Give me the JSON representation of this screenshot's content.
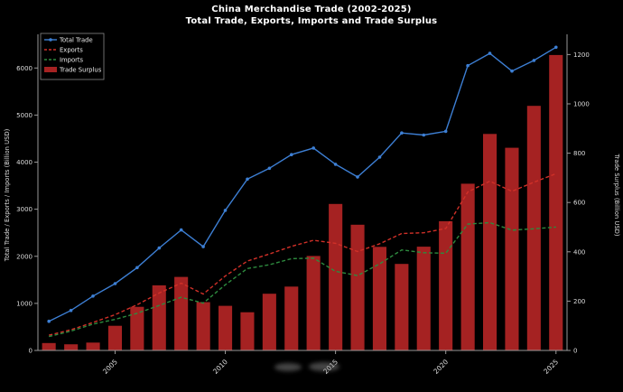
{
  "figure": {
    "title": "China Merchandise Trade (2002-2025)",
    "subtitle": "Total Trade, Exports, Imports and Trade Surplus"
  },
  "colors": {
    "background": "#000000",
    "total_trade": "#3d7fd4",
    "exports": "#d03028",
    "imports": "#2d8a3e",
    "surplus_bar": "#a52222",
    "axis": "#999999",
    "tick_text": "#dddddd",
    "legend_border": "#888888"
  },
  "chart_data": {
    "type": "line",
    "title": "China Merchandise Trade (2002-2025)",
    "subtitle": "Total Trade, Exports, Imports and Trade Surplus",
    "x": [
      2002,
      2003,
      2004,
      2005,
      2006,
      2007,
      2008,
      2009,
      2010,
      2011,
      2012,
      2013,
      2014,
      2015,
      2016,
      2017,
      2018,
      2019,
      2020,
      2021,
      2022,
      2023,
      2024,
      2025
    ],
    "xticks": [
      2005,
      2010,
      2015,
      2020,
      2025
    ],
    "ylabel_left": "Total Trade / Exports / Imports (Billion USD)",
    "ylabel_right": "Trade Surplus (Billion USD)",
    "ylim_left": [
      0,
      6600
    ],
    "ylim_right": [
      0,
      1260
    ],
    "yticks_left": [
      0,
      1000,
      2000,
      3000,
      4000,
      5000,
      6000
    ],
    "yticks_right": [
      0,
      200,
      400,
      600,
      800,
      1000,
      1200
    ],
    "grid": false,
    "legend_position": "upper-left",
    "series": [
      {
        "name": "Total Trade",
        "axis": "left",
        "style": "line-marker",
        "color": "#3d7fd4",
        "values": [
          620,
          850,
          1155,
          1420,
          1760,
          2175,
          2560,
          2205,
          2975,
          3640,
          3870,
          4160,
          4300,
          3955,
          3685,
          4105,
          4620,
          4575,
          4655,
          6050,
          6310,
          5935,
          6160,
          6440
        ]
      },
      {
        "name": "Exports",
        "axis": "left",
        "style": "dashed",
        "color": "#d03028",
        "values": [
          325,
          440,
          595,
          760,
          970,
          1220,
          1430,
          1200,
          1580,
          1900,
          2050,
          2210,
          2340,
          2275,
          2100,
          2265,
          2485,
          2500,
          2590,
          3365,
          3595,
          3380,
          3575,
          3755
        ]
      },
      {
        "name": "Imports",
        "axis": "left",
        "style": "dashed",
        "color": "#2d8a3e",
        "values": [
          295,
          410,
          560,
          660,
          790,
          955,
          1130,
          1005,
          1395,
          1740,
          1820,
          1950,
          1960,
          1680,
          1590,
          1840,
          2135,
          2075,
          2065,
          2685,
          2715,
          2555,
          2585,
          2620
        ]
      },
      {
        "name": "Trade Surplus",
        "axis": "right",
        "style": "bar",
        "color": "#a52222",
        "values": [
          30,
          25,
          32,
          100,
          177,
          264,
          298,
          196,
          181,
          155,
          230,
          259,
          383,
          594,
          510,
          420,
          351,
          421,
          524,
          676,
          878,
          822,
          992,
          1198
        ]
      }
    ]
  }
}
